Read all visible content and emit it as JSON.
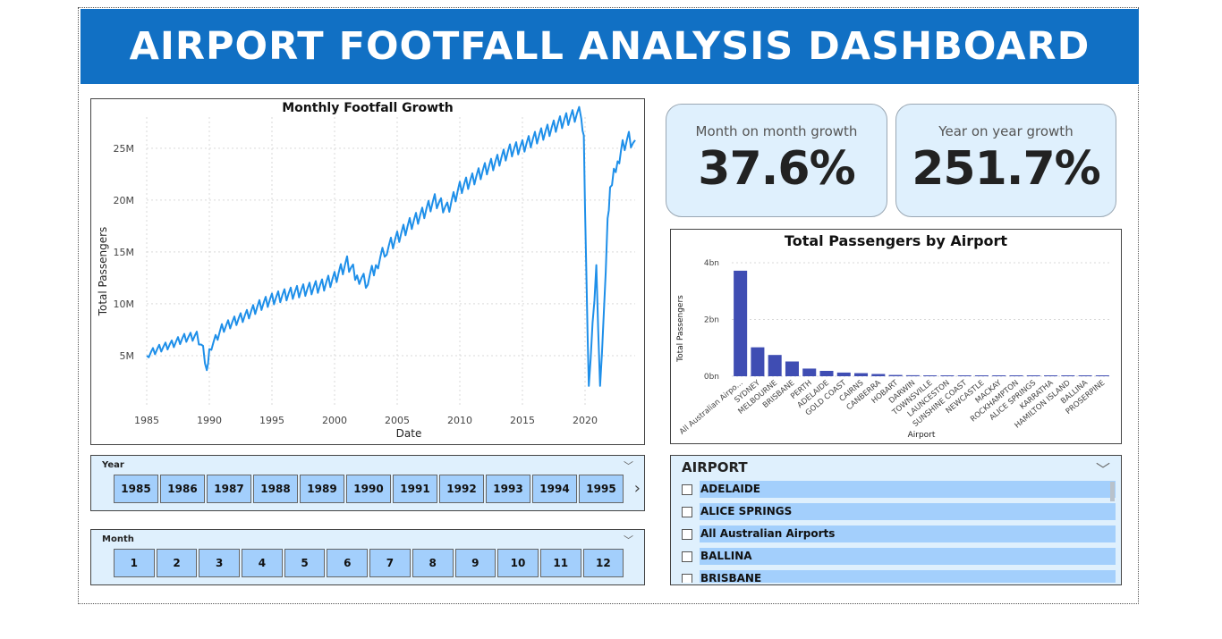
{
  "dashboard": {
    "title": "AIRPORT FOOTFALL ANALYSIS DASHBOARD"
  },
  "kpis": {
    "mom": {
      "label": "Month on month growth",
      "value": "37.6%"
    },
    "yoy": {
      "label": "Year on year growth",
      "value": "251.7%"
    }
  },
  "chart_data": [
    {
      "type": "line",
      "title": "Monthly Footfall Growth",
      "xlabel": "Date",
      "ylabel": "Total Passengers",
      "xlim": [
        1985,
        2024
      ],
      "ylim": [
        0,
        28000000
      ],
      "x_ticks": [
        "1985",
        "1990",
        "1995",
        "2000",
        "2005",
        "2010",
        "2015",
        "2020"
      ],
      "y_ticks": [
        "5M",
        "10M",
        "15M",
        "20M",
        "25M"
      ],
      "grid": true,
      "color": "#1e8fe9",
      "x": [
        1985.0,
        1986.0,
        1987.0,
        1988.0,
        1989.0,
        1989.5,
        1989.8,
        1990.0,
        1990.5,
        1991.0,
        1992.0,
        1993.0,
        1994.0,
        1995.0,
        1996.0,
        1997.0,
        1998.0,
        1999.0,
        2000.0,
        2001.0,
        2001.8,
        2002.5,
        2003.3,
        2004.0,
        2005.0,
        2006.0,
        2007.0,
        2008.0,
        2009.0,
        2010.0,
        2011.0,
        2012.0,
        2013.0,
        2014.0,
        2015.0,
        2016.0,
        2017.0,
        2018.0,
        2019.0,
        2019.7,
        2019.9,
        2020.1,
        2020.3,
        2020.6,
        2020.9,
        2021.2,
        2021.5,
        2021.8,
        2022.0,
        2022.3,
        2022.6,
        2023.0,
        2023.5,
        2024.0
      ],
      "y": [
        5000000,
        5600000,
        6000000,
        6600000,
        6800000,
        5500000,
        3500000,
        5500000,
        6500000,
        7500000,
        8200000,
        8800000,
        9700000,
        10300000,
        10700000,
        11000000,
        11300000,
        11600000,
        12300000,
        13800000,
        12500000,
        12000000,
        13500000,
        15000000,
        16200000,
        17500000,
        18500000,
        19800000,
        19000000,
        21000000,
        21800000,
        22800000,
        23600000,
        24600000,
        25000000,
        25800000,
        26500000,
        27300000,
        27900000,
        28300000,
        26000000,
        13000000,
        2000000,
        8000000,
        13500000,
        2000000,
        9000000,
        18000000,
        21000000,
        22800000,
        23500000,
        25000000,
        25800000,
        25000000
      ]
    },
    {
      "type": "bar",
      "title": "Total Passengers by Airport",
      "xlabel": "Airport",
      "ylabel": "Total Passengers",
      "ylim": [
        0,
        4000000000
      ],
      "y_ticks": [
        "0bn",
        "2bn",
        "4bn"
      ],
      "grid": true,
      "color": "#3f4db3",
      "categories": [
        "All Australian Airpo...",
        "SYDNEY",
        "MELBOURNE",
        "BRISBANE",
        "PERTH",
        "ADELAIDE",
        "GOLD COAST",
        "CAIRNS",
        "CANBERRA",
        "HOBART",
        "DARWIN",
        "TOWNSVILLE",
        "LAUNCESTON",
        "SUNSHINE COAST",
        "NEWCASTLE",
        "MACKAY",
        "ROCKHAMPTON",
        "ALICE SPRINGS",
        "KARRATHA",
        "HAMILTON ISLAND",
        "BALLINA",
        "PROSERPINE"
      ],
      "values": [
        3720000000,
        1020000000,
        750000000,
        520000000,
        270000000,
        190000000,
        130000000,
        110000000,
        80000000,
        45000000,
        35000000,
        28000000,
        22000000,
        18000000,
        15000000,
        14000000,
        13000000,
        12000000,
        11000000,
        10000000,
        9000000,
        8000000
      ]
    }
  ],
  "year_slicer": {
    "title": "Year",
    "items": [
      "1985",
      "1986",
      "1987",
      "1988",
      "1989",
      "1990",
      "1991",
      "1992",
      "1993",
      "1994",
      "1995"
    ]
  },
  "month_slicer": {
    "title": "Month",
    "items": [
      "1",
      "2",
      "3",
      "4",
      "5",
      "6",
      "7",
      "8",
      "9",
      "10",
      "11",
      "12"
    ]
  },
  "airport_slicer": {
    "title": "AIRPORT",
    "items": [
      "ADELAIDE",
      "ALICE SPRINGS",
      "All Australian Airports",
      "BALLINA",
      "BRISBANE"
    ]
  }
}
